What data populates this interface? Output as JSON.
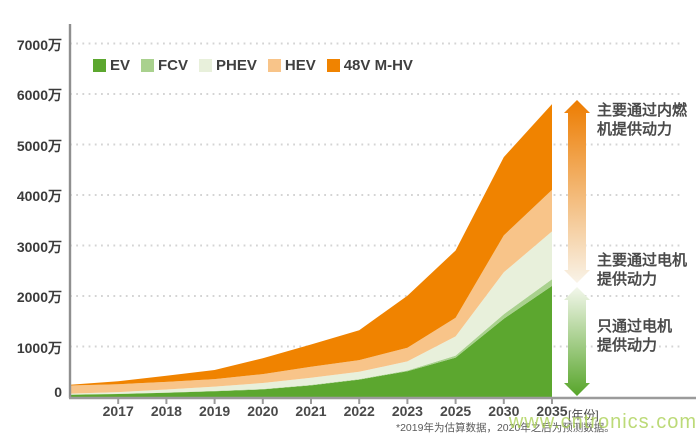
{
  "page": {
    "background": "#ffffff"
  },
  "chart_data": {
    "type": "area",
    "stacked": true,
    "title": "",
    "x": [
      "2016",
      "2017",
      "2018",
      "2019",
      "2020",
      "2021",
      "2022",
      "2023",
      "2025",
      "2030",
      "2035"
    ],
    "x_axis_labeled_ticks": [
      "2017",
      "2018",
      "2019",
      "2020",
      "2021",
      "2022",
      "2023",
      "2025",
      "2030",
      "2035"
    ],
    "x_axis_unit": "[年份]",
    "y_axis_ticks": [
      "0",
      "1000万",
      "2000万",
      "3000万",
      "4000万",
      "5000万",
      "6000万",
      "7000万"
    ],
    "ylim": [
      0,
      7000
    ],
    "y_unit": "万",
    "grid": "dotted-horizontal",
    "legend_position": "top-left-inside",
    "series": [
      {
        "name": "EV",
        "color": "#5CA72F",
        "values": [
          45,
          60,
          85,
          115,
          150,
          230,
          345,
          510,
          780,
          1550,
          2200
        ]
      },
      {
        "name": "FCV",
        "color": "#A9D18E",
        "values": [
          2,
          3,
          4,
          5,
          8,
          10,
          10,
          15,
          40,
          90,
          130
        ]
      },
      {
        "name": "PHEV",
        "color": "#E8F0DB",
        "values": [
          20,
          35,
          60,
          85,
          120,
          140,
          145,
          180,
          380,
          830,
          950
        ]
      },
      {
        "name": "HEV",
        "color": "#F8C489",
        "values": [
          160,
          155,
          150,
          150,
          175,
          220,
          230,
          270,
          370,
          730,
          820
        ]
      },
      {
        "name": "48V M-HV",
        "color": "#F08300",
        "values": [
          15,
          60,
          120,
          180,
          315,
          440,
          590,
          1030,
          1330,
          1550,
          1700
        ]
      }
    ]
  },
  "arrows": {
    "ice_arrow": {
      "top_color": "#ED7C00",
      "bottom_color": "#F9F3E8"
    },
    "motor_arrow": {
      "top_color": "#F3F7EB",
      "bottom_color": "#57A52A"
    }
  },
  "annotations": [
    {
      "line1": "主要通过内燃",
      "line2": "机提供动力"
    },
    {
      "line1": "主要通过电机",
      "line2": "提供动力"
    },
    {
      "line1": "只通过电机",
      "line2": "提供动力"
    }
  ],
  "footnote": "*2019年为估算数据，2020年之后为预测数据。",
  "watermark": "www.cntronics.com"
}
